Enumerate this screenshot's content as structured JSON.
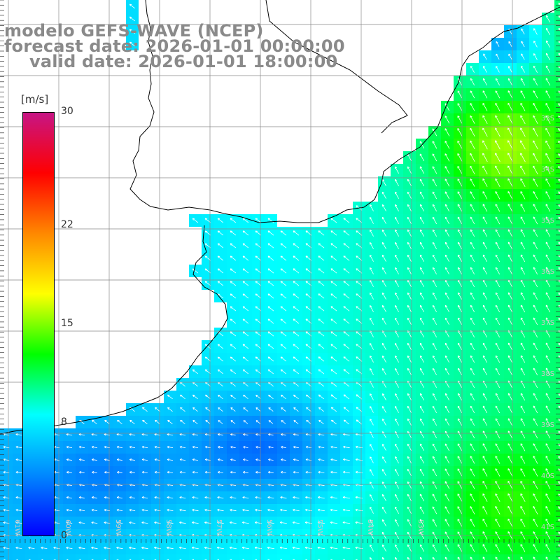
{
  "title": {
    "line1": "modelo GEFS-WAVE (NCEP)",
    "line2": "forecast date: 2026-01-01 00:00:00",
    "line3": "valid date: 2026-01-01 18:00:00"
  },
  "colorbar": {
    "unit": "[m/s]",
    "ticks": [
      {
        "label": "30",
        "value": 30
      },
      {
        "label": "22",
        "value": 22
      },
      {
        "label": "15",
        "value": 15
      },
      {
        "label": "8",
        "value": 8
      },
      {
        "label": "0",
        "value": 0
      }
    ],
    "colors": [
      "#0000ff",
      "#0088ff",
      "#00ffff",
      "#00ff00",
      "#ffff00",
      "#ff8800",
      "#ff0000",
      "#c71585"
    ]
  },
  "grid": {
    "lat_labels": [
      "33S",
      "34S",
      "35S",
      "36S",
      "37S",
      "38S",
      "39S",
      "40S",
      "41S"
    ],
    "lon_labels": [
      "61W",
      "60W",
      "59W",
      "58W",
      "57W",
      "56W",
      "55W",
      "54W",
      "53W"
    ]
  },
  "colors": {
    "land": "#ffffff",
    "coastline": "#000000",
    "gridline": "#888888",
    "arrow": "#ffffff"
  }
}
